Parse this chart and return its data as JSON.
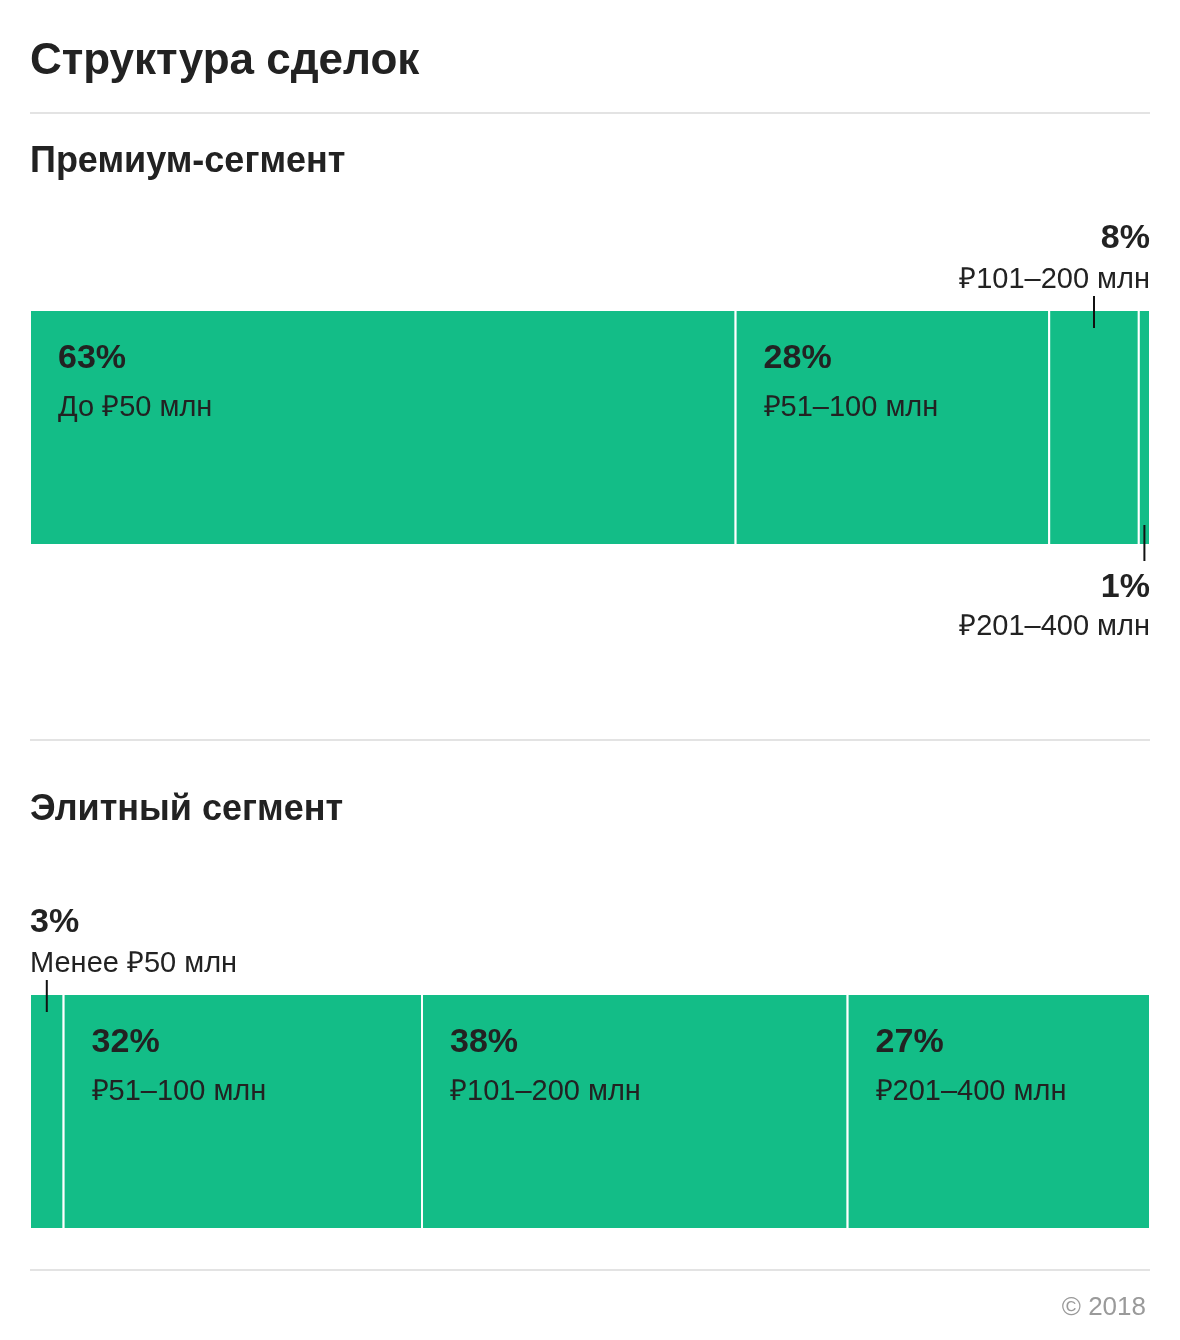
{
  "chart_data": [
    {
      "type": "bar",
      "orientation": "horizontal",
      "stacked": true,
      "title": "Структура сделок",
      "subtitle": "Премиум-сегмент",
      "categories": [
        null
      ],
      "xlim": [
        0,
        100
      ],
      "series": [
        {
          "name": "До ₽50 млн",
          "color": "#13bd87",
          "values": [
            63
          ],
          "value_labels": [
            "63%"
          ]
        },
        {
          "name": "₽51–100 млн",
          "color": "#13bd87",
          "values": [
            28
          ],
          "value_labels": [
            "28%"
          ]
        },
        {
          "name": "₽101–200 млн",
          "color": "#13bd87",
          "values": [
            8
          ],
          "value_labels": [
            "8%"
          ]
        },
        {
          "name": "₽201–400 млн",
          "color": "#13bd87",
          "values": [
            1
          ],
          "value_labels": [
            "1%"
          ]
        }
      ]
    },
    {
      "type": "bar",
      "orientation": "horizontal",
      "stacked": true,
      "title": "Элитный сегмент",
      "categories": [
        null
      ],
      "xlim": [
        0,
        100
      ],
      "annotations": [
        "© 2018"
      ],
      "series": [
        {
          "name": "Менее ₽50 млн",
          "color": "#13bd87",
          "values": [
            3
          ],
          "value_labels": [
            "3%"
          ]
        },
        {
          "name": "₽51–100 млн",
          "color": "#13bd87",
          "values": [
            32
          ],
          "value_labels": [
            "32%"
          ]
        },
        {
          "name": "₽101–200 млн",
          "color": "#13bd87",
          "values": [
            38
          ],
          "value_labels": [
            "38%"
          ]
        },
        {
          "name": "₽201–400 млн",
          "color": "#13bd87",
          "values": [
            27
          ],
          "value_labels": [
            "27%"
          ]
        }
      ]
    }
  ]
}
